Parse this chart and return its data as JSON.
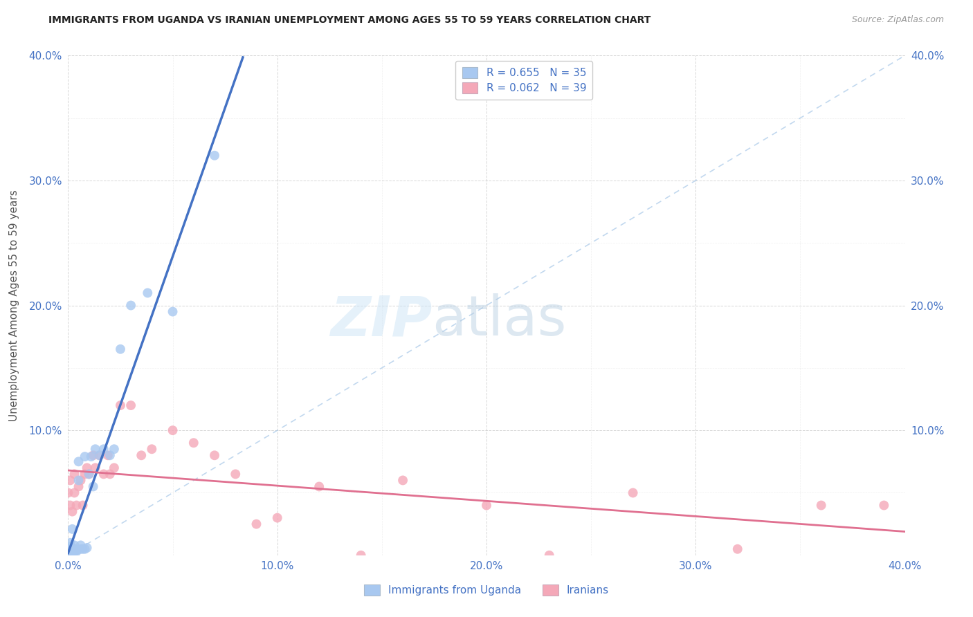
{
  "title": "IMMIGRANTS FROM UGANDA VS IRANIAN UNEMPLOYMENT AMONG AGES 55 TO 59 YEARS CORRELATION CHART",
  "source": "Source: ZipAtlas.com",
  "ylabel": "Unemployment Among Ages 55 to 59 years",
  "xlim": [
    0.0,
    0.4
  ],
  "ylim": [
    0.0,
    0.4
  ],
  "r_uganda": 0.655,
  "n_uganda": 35,
  "r_iranian": 0.062,
  "n_iranian": 39,
  "color_uganda": "#a8c8f0",
  "color_iranian": "#f4a8b8",
  "color_uganda_line": "#4472c4",
  "color_iranian_line": "#e07090",
  "color_diag": "#a8c8e8",
  "tick_color": "#4472c4",
  "grid_color": "#cccccc",
  "title_color": "#222222",
  "source_color": "#999999",
  "ylabel_color": "#555555",
  "uganda_x": [
    0.0,
    0.0,
    0.001,
    0.001,
    0.001,
    0.001,
    0.002,
    0.002,
    0.002,
    0.003,
    0.003,
    0.003,
    0.004,
    0.004,
    0.005,
    0.005,
    0.006,
    0.006,
    0.007,
    0.008,
    0.008,
    0.009,
    0.01,
    0.011,
    0.012,
    0.013,
    0.015,
    0.017,
    0.02,
    0.022,
    0.025,
    0.03,
    0.038,
    0.05,
    0.07
  ],
  "uganda_y": [
    0.003,
    0.005,
    0.001,
    0.003,
    0.007,
    0.01,
    0.003,
    0.006,
    0.021,
    0.003,
    0.005,
    0.008,
    0.003,
    0.004,
    0.06,
    0.075,
    0.005,
    0.008,
    0.005,
    0.005,
    0.079,
    0.006,
    0.065,
    0.079,
    0.055,
    0.085,
    0.08,
    0.085,
    0.08,
    0.085,
    0.165,
    0.2,
    0.21,
    0.195,
    0.32
  ],
  "iranian_x": [
    0.0,
    0.001,
    0.001,
    0.002,
    0.003,
    0.003,
    0.004,
    0.005,
    0.006,
    0.007,
    0.008,
    0.009,
    0.01,
    0.012,
    0.013,
    0.015,
    0.017,
    0.019,
    0.02,
    0.022,
    0.025,
    0.03,
    0.035,
    0.04,
    0.05,
    0.06,
    0.07,
    0.08,
    0.09,
    0.1,
    0.12,
    0.14,
    0.16,
    0.2,
    0.23,
    0.27,
    0.32,
    0.36,
    0.39
  ],
  "iranian_y": [
    0.05,
    0.04,
    0.06,
    0.035,
    0.05,
    0.065,
    0.04,
    0.055,
    0.06,
    0.04,
    0.065,
    0.07,
    0.065,
    0.08,
    0.07,
    0.08,
    0.065,
    0.08,
    0.065,
    0.07,
    0.12,
    0.12,
    0.08,
    0.085,
    0.1,
    0.09,
    0.08,
    0.065,
    0.025,
    0.03,
    0.055,
    0.0,
    0.06,
    0.04,
    0.0,
    0.05,
    0.005,
    0.04,
    0.04
  ]
}
